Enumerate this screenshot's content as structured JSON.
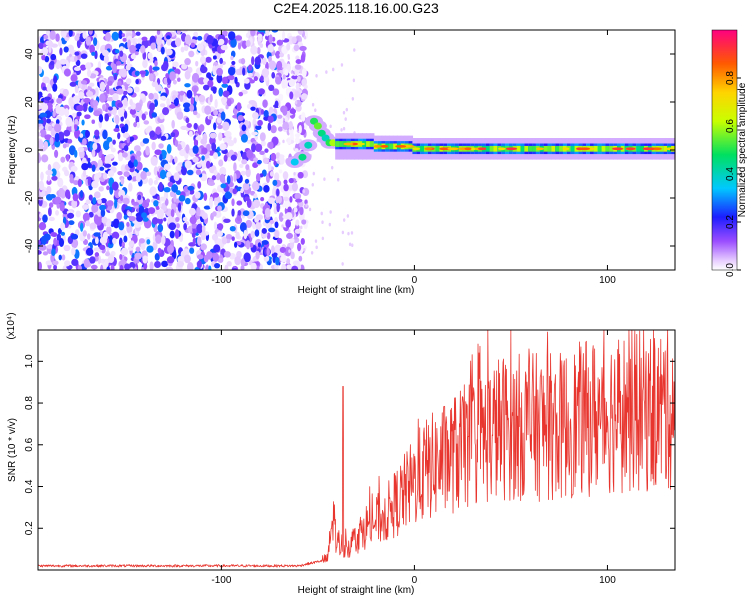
{
  "title": "C2E4.2025.118.16.00.G23",
  "colors": {
    "snr_line": "#e8352e",
    "frame": "#000000",
    "background": "#ffffff"
  },
  "chart_data": [
    {
      "type": "heatmap",
      "xlabel": "Height of straight line (km)",
      "ylabel": "Frequency (Hz)",
      "xlim": [
        -195,
        135
      ],
      "ylim": [
        -50,
        50
      ],
      "x_ticks": [
        -100,
        0,
        100
      ],
      "x_tick_labels": [
        "-100",
        "0",
        "100"
      ],
      "y_ticks": [
        -40,
        -20,
        0,
        20,
        40
      ],
      "y_tick_labels": [
        "-40",
        "-20",
        "0",
        "20",
        "40"
      ],
      "colorbar": {
        "label": "Normalized spectral amplitude",
        "range": [
          0,
          1
        ],
        "ticks": [
          0.0,
          0.2,
          0.4,
          0.6,
          0.8
        ],
        "tick_labels": [
          "0.0",
          "0.2",
          "0.4",
          "0.6",
          "0.8"
        ],
        "colormap": "rainbow-with-white-floor"
      },
      "regions": [
        {
          "kind": "noise",
          "x_range": [
            -195,
            -60
          ],
          "amplitude_range": [
            0.02,
            0.3
          ]
        },
        {
          "kind": "transition",
          "x_range": [
            -62,
            -40
          ],
          "center_freq_hz": [
            -5,
            12
          ]
        },
        {
          "kind": "tone",
          "x_range": [
            -40,
            135
          ],
          "center_freq_hz": 0,
          "peak_amplitude": 0.95
        }
      ],
      "grid": false
    },
    {
      "type": "line",
      "xlabel": "Height of straight line (km)",
      "ylabel": "SNR (10 * v/v)",
      "y_scale_label": "(x10⁴)",
      "xlim": [
        -195,
        135
      ],
      "ylim": [
        0,
        1.15
      ],
      "x_ticks": [
        -100,
        0,
        100
      ],
      "x_tick_labels": [
        "-100",
        "0",
        "100"
      ],
      "y_ticks": [
        0.2,
        0.4,
        0.6,
        0.8,
        1.0
      ],
      "y_tick_labels": [
        "0.2",
        "0.4",
        "0.6",
        "0.8",
        "1.0"
      ],
      "envelope": {
        "x": [
          -195,
          -60,
          -45,
          -42,
          -40,
          -35,
          -25,
          -15,
          -5,
          5,
          15,
          25,
          35,
          45,
          55,
          65,
          75,
          85,
          95,
          105,
          115,
          125,
          135
        ],
        "y": [
          0.02,
          0.02,
          0.05,
          0.25,
          0.12,
          0.1,
          0.2,
          0.25,
          0.35,
          0.45,
          0.5,
          0.55,
          0.6,
          0.65,
          0.65,
          0.65,
          0.65,
          0.68,
          0.7,
          0.72,
          0.72,
          0.72,
          0.75
        ]
      },
      "notable_peaks": [
        {
          "x": -37,
          "y": 0.88
        },
        {
          "x": 50,
          "y": 1.15
        },
        {
          "x": 130,
          "y": 1.05
        }
      ],
      "grid": false
    }
  ]
}
